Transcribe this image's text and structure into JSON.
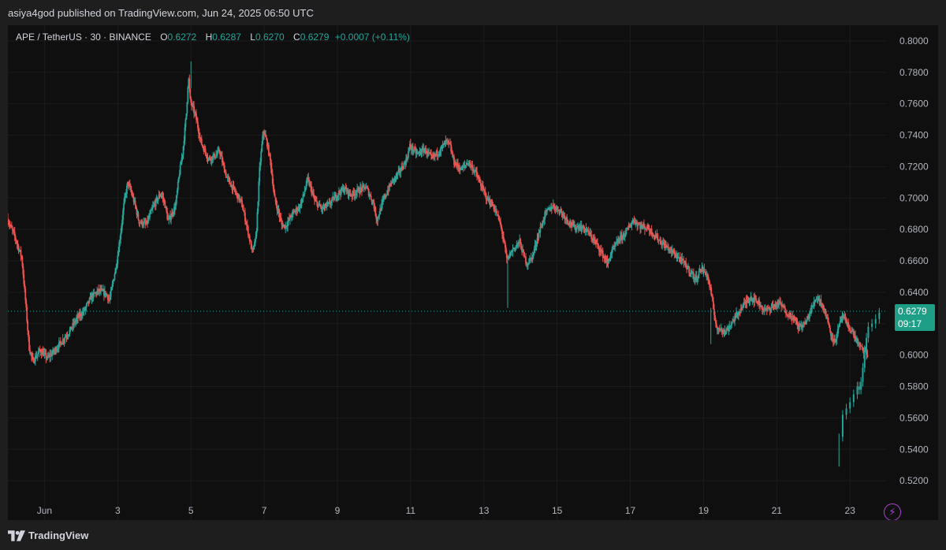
{
  "header": {
    "published": "asiya4god published on TradingView.com, Jun 24, 2025 06:50 UTC"
  },
  "legend": {
    "symbol": "APE / TetherUS · 30 · BINANCE",
    "open_label": "O",
    "open": "0.6272",
    "high_label": "H",
    "high": "0.6287",
    "low_label": "L",
    "low": "0.6270",
    "close_label": "C",
    "close": "0.6279",
    "change": "+0.0007 (+0.11%)"
  },
  "price_tag": {
    "price": "0.6279",
    "countdown": "09:17"
  },
  "footer": {
    "brand": "TradingView"
  },
  "icons": {
    "flash": "lightning-icon",
    "brand": "tradingview-logo-icon"
  },
  "colors": {
    "up": "#26a69a",
    "down": "#ef5350",
    "background": "#0f0f0f",
    "grid": "#1c1c1c",
    "price_line": "#26a69a",
    "price_tag": "#1e9e86",
    "accent_icon": "#b043d6"
  },
  "chart_data": {
    "type": "candlestick",
    "title": "",
    "xlabel": "",
    "ylabel": "",
    "ylim": [
      0.5,
      0.81
    ],
    "y_ticks": [
      "0.8000",
      "0.7800",
      "0.7600",
      "0.7400",
      "0.7200",
      "0.7000",
      "0.6800",
      "0.6600",
      "0.6400",
      "0.6200",
      "0.6000",
      "0.5800",
      "0.5600",
      "0.5400",
      "0.5200"
    ],
    "x_range_days": [
      31.0,
      54.9
    ],
    "x_ticks": [
      {
        "label": "Jun",
        "day": 32
      },
      {
        "label": "3",
        "day": 34
      },
      {
        "label": "5",
        "day": 36
      },
      {
        "label": "7",
        "day": 38
      },
      {
        "label": "9",
        "day": 40
      },
      {
        "label": "11",
        "day": 42
      },
      {
        "label": "13",
        "day": 44
      },
      {
        "label": "15",
        "day": 46
      },
      {
        "label": "17",
        "day": 48
      },
      {
        "label": "19",
        "day": 50
      },
      {
        "label": "21",
        "day": 52
      },
      {
        "label": "23",
        "day": 54
      }
    ],
    "grid": true,
    "last_price": 0.6279,
    "path": [
      [
        31.0,
        0.687
      ],
      [
        31.2,
        0.676
      ],
      [
        31.4,
        0.662
      ],
      [
        31.5,
        0.635
      ],
      [
        31.6,
        0.605
      ],
      [
        31.7,
        0.596
      ],
      [
        31.9,
        0.603
      ],
      [
        32.1,
        0.598
      ],
      [
        32.3,
        0.603
      ],
      [
        32.5,
        0.609
      ],
      [
        32.7,
        0.615
      ],
      [
        32.9,
        0.623
      ],
      [
        33.1,
        0.628
      ],
      [
        33.3,
        0.637
      ],
      [
        33.5,
        0.641
      ],
      [
        33.7,
        0.639
      ],
      [
        33.8,
        0.635
      ],
      [
        34.0,
        0.66
      ],
      [
        34.1,
        0.678
      ],
      [
        34.2,
        0.698
      ],
      [
        34.3,
        0.71
      ],
      [
        34.4,
        0.703
      ],
      [
        34.5,
        0.695
      ],
      [
        34.6,
        0.685
      ],
      [
        34.8,
        0.683
      ],
      [
        35.0,
        0.695
      ],
      [
        35.2,
        0.703
      ],
      [
        35.3,
        0.697
      ],
      [
        35.4,
        0.685
      ],
      [
        35.6,
        0.695
      ],
      [
        35.7,
        0.715
      ],
      [
        35.8,
        0.73
      ],
      [
        35.9,
        0.755
      ],
      [
        35.95,
        0.778
      ],
      [
        36.0,
        0.762
      ],
      [
        36.15,
        0.752
      ],
      [
        36.3,
        0.735
      ],
      [
        36.5,
        0.725
      ],
      [
        36.7,
        0.727
      ],
      [
        36.8,
        0.73
      ],
      [
        36.9,
        0.721
      ],
      [
        37.0,
        0.713
      ],
      [
        37.2,
        0.705
      ],
      [
        37.4,
        0.697
      ],
      [
        37.55,
        0.682
      ],
      [
        37.7,
        0.665
      ],
      [
        37.8,
        0.675
      ],
      [
        37.9,
        0.72
      ],
      [
        38.0,
        0.743
      ],
      [
        38.1,
        0.735
      ],
      [
        38.2,
        0.722
      ],
      [
        38.3,
        0.7
      ],
      [
        38.4,
        0.692
      ],
      [
        38.5,
        0.683
      ],
      [
        38.6,
        0.682
      ],
      [
        38.8,
        0.69
      ],
      [
        39.0,
        0.695
      ],
      [
        39.1,
        0.702
      ],
      [
        39.2,
        0.712
      ],
      [
        39.3,
        0.706
      ],
      [
        39.4,
        0.698
      ],
      [
        39.6,
        0.693
      ],
      [
        39.8,
        0.696
      ],
      [
        40.0,
        0.702
      ],
      [
        40.2,
        0.706
      ],
      [
        40.4,
        0.702
      ],
      [
        40.6,
        0.705
      ],
      [
        40.8,
        0.707
      ],
      [
        41.0,
        0.697
      ],
      [
        41.1,
        0.686
      ],
      [
        41.3,
        0.7
      ],
      [
        41.5,
        0.71
      ],
      [
        41.7,
        0.716
      ],
      [
        41.9,
        0.724
      ],
      [
        42.0,
        0.733
      ],
      [
        42.2,
        0.728
      ],
      [
        42.4,
        0.731
      ],
      [
        42.6,
        0.725
      ],
      [
        42.8,
        0.73
      ],
      [
        43.0,
        0.736
      ],
      [
        43.1,
        0.733
      ],
      [
        43.2,
        0.723
      ],
      [
        43.4,
        0.718
      ],
      [
        43.6,
        0.723
      ],
      [
        43.8,
        0.716
      ],
      [
        43.9,
        0.71
      ],
      [
        44.1,
        0.7
      ],
      [
        44.3,
        0.694
      ],
      [
        44.45,
        0.685
      ],
      [
        44.55,
        0.675
      ],
      [
        44.65,
        0.66
      ],
      [
        44.8,
        0.667
      ],
      [
        45.0,
        0.672
      ],
      [
        45.1,
        0.664
      ],
      [
        45.2,
        0.658
      ],
      [
        45.35,
        0.663
      ],
      [
        45.5,
        0.676
      ],
      [
        45.7,
        0.69
      ],
      [
        45.9,
        0.695
      ],
      [
        46.1,
        0.692
      ],
      [
        46.3,
        0.686
      ],
      [
        46.5,
        0.681
      ],
      [
        46.6,
        0.682
      ],
      [
        46.8,
        0.68
      ],
      [
        47.0,
        0.674
      ],
      [
        47.2,
        0.667
      ],
      [
        47.4,
        0.658
      ],
      [
        47.5,
        0.665
      ],
      [
        47.7,
        0.673
      ],
      [
        47.9,
        0.678
      ],
      [
        48.0,
        0.682
      ],
      [
        48.1,
        0.686
      ],
      [
        48.3,
        0.682
      ],
      [
        48.5,
        0.681
      ],
      [
        48.7,
        0.676
      ],
      [
        48.9,
        0.671
      ],
      [
        49.1,
        0.667
      ],
      [
        49.3,
        0.663
      ],
      [
        49.5,
        0.658
      ],
      [
        49.7,
        0.652
      ],
      [
        49.8,
        0.648
      ],
      [
        49.95,
        0.655
      ],
      [
        50.1,
        0.652
      ],
      [
        50.2,
        0.643
      ],
      [
        50.3,
        0.628
      ],
      [
        50.4,
        0.615
      ],
      [
        50.5,
        0.618
      ],
      [
        50.6,
        0.614
      ],
      [
        50.8,
        0.621
      ],
      [
        51.0,
        0.628
      ],
      [
        51.15,
        0.633
      ],
      [
        51.3,
        0.637
      ],
      [
        51.5,
        0.634
      ],
      [
        51.7,
        0.628
      ],
      [
        51.9,
        0.631
      ],
      [
        52.1,
        0.633
      ],
      [
        52.3,
        0.627
      ],
      [
        52.5,
        0.623
      ],
      [
        52.6,
        0.618
      ],
      [
        52.8,
        0.62
      ],
      [
        53.0,
        0.631
      ],
      [
        53.1,
        0.637
      ],
      [
        53.2,
        0.635
      ],
      [
        53.3,
        0.63
      ],
      [
        53.4,
        0.623
      ],
      [
        53.5,
        0.614
      ],
      [
        53.6,
        0.608
      ],
      [
        53.7,
        0.616
      ],
      [
        53.8,
        0.625
      ],
      [
        53.9,
        0.621
      ],
      [
        54.1,
        0.614
      ],
      [
        54.3,
        0.605
      ],
      [
        54.5,
        0.6
      ]
    ]
  }
}
